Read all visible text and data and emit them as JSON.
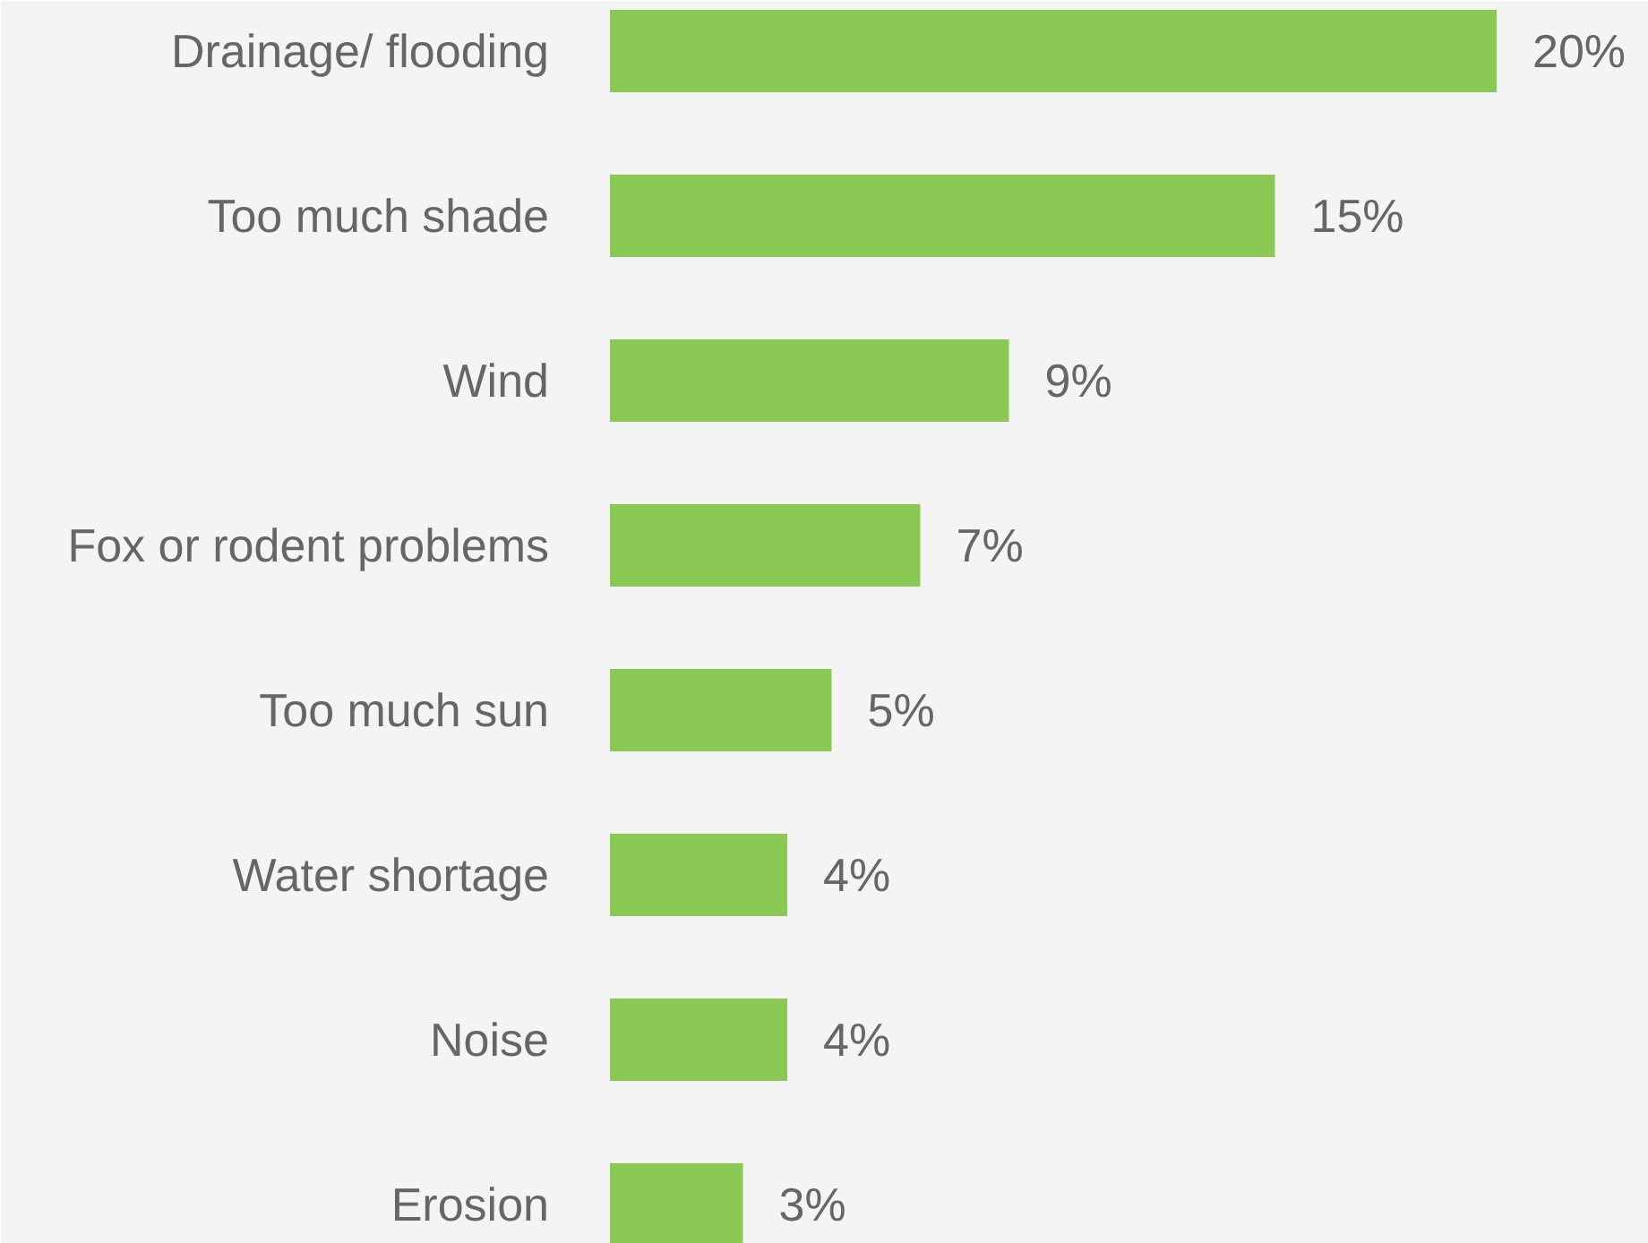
{
  "chart_data": {
    "type": "bar",
    "orientation": "horizontal",
    "categories": [
      "Drainage/ flooding",
      "Too much shade",
      "Wind",
      "Fox or rodent problems",
      "Too much sun",
      "Water shortage",
      "Noise",
      "Erosion"
    ],
    "values": [
      20,
      15,
      9,
      7,
      5,
      4,
      4,
      3
    ],
    "value_labels": [
      "20%",
      "15%",
      "9%",
      "7%",
      "5%",
      "4%",
      "4%",
      "3%"
    ],
    "color": "#8bc955"
  }
}
